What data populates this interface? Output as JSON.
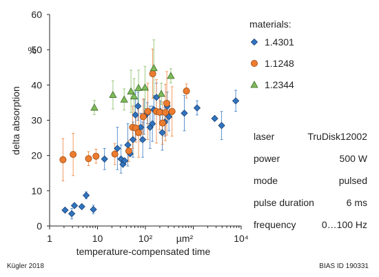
{
  "chart_data": {
    "type": "scatter",
    "x_scale": "log",
    "xlim": [
      1,
      10000
    ],
    "ylim": [
      0,
      60
    ],
    "grid": false,
    "xlabel": "temperature-compensated time",
    "ylabel": "delta absorption",
    "x_unit": "µm²",
    "y_unit": "%",
    "x_ticks": [
      {
        "value": 1,
        "label": "1"
      },
      {
        "value": 10,
        "label": "10"
      },
      {
        "value": 100,
        "label": "10²"
      },
      {
        "value": 10000,
        "label": "10⁴"
      }
    ],
    "y_ticks": [
      0,
      10,
      20,
      30,
      40,
      50,
      60
    ],
    "legend_title": "materials:",
    "legend_position": "right",
    "series": [
      {
        "name": "1.4301",
        "marker": "diamond",
        "color": "#2f74c0",
        "points": [
          {
            "x": 2.1,
            "y": 4.5
          },
          {
            "x": 2.9,
            "y": 3.5,
            "e": 1.5
          },
          {
            "x": 3.3,
            "y": 5.8
          },
          {
            "x": 4.7,
            "y": 5.5
          },
          {
            "x": 5.8,
            "y": 8.7,
            "e": 1.0
          },
          {
            "x": 8.2,
            "y": 4.7,
            "e": 1.2
          },
          {
            "x": 14,
            "y": 19,
            "e": 3
          },
          {
            "x": 26,
            "y": 22,
            "e": 6
          },
          {
            "x": 31,
            "y": 19,
            "e": 4
          },
          {
            "x": 34,
            "y": 17.5
          },
          {
            "x": 37,
            "y": 18.5
          },
          {
            "x": 43,
            "y": 23,
            "e": 6
          },
          {
            "x": 48,
            "y": 20.5
          },
          {
            "x": 55,
            "y": 24.5,
            "e": 5
          },
          {
            "x": 62,
            "y": 31.5,
            "e": 7
          },
          {
            "x": 70,
            "y": 34,
            "e": 4
          },
          {
            "x": 80,
            "y": 28,
            "e": 4
          },
          {
            "x": 88,
            "y": 24.5,
            "e": 5
          },
          {
            "x": 94,
            "y": 31,
            "e": 5
          },
          {
            "x": 110,
            "y": 32,
            "e": 3
          },
          {
            "x": 125,
            "y": 28,
            "e": 6
          },
          {
            "x": 140,
            "y": 29,
            "e": 5
          },
          {
            "x": 150,
            "y": 33,
            "e": 4
          },
          {
            "x": 170,
            "y": 36.5,
            "e": 4
          },
          {
            "x": 205,
            "y": 32.5,
            "e": 3
          },
          {
            "x": 225,
            "y": 26.5,
            "e": 5
          },
          {
            "x": 255,
            "y": 29.5,
            "e": 4
          },
          {
            "x": 285,
            "y": 34,
            "e": 4
          },
          {
            "x": 310,
            "y": 31,
            "e": 4
          },
          {
            "x": 650,
            "y": 32,
            "e": 5
          },
          {
            "x": 1200,
            "y": 33.5,
            "e": 2
          },
          {
            "x": 2800,
            "y": 30.5
          },
          {
            "x": 3900,
            "y": 28.5,
            "e": 4
          },
          {
            "x": 7700,
            "y": 35.5,
            "e": 3
          }
        ]
      },
      {
        "name": "1.1248",
        "marker": "circle",
        "color": "#ec7c30",
        "points": [
          {
            "x": 1.9,
            "y": 18.8,
            "e": 6
          },
          {
            "x": 3.1,
            "y": 20.3,
            "e": 6
          },
          {
            "x": 6.5,
            "y": 19.1,
            "e": 2
          },
          {
            "x": 9.3,
            "y": 19.8,
            "e": 2
          },
          {
            "x": 23,
            "y": 20.4,
            "e": 3
          },
          {
            "x": 45,
            "y": 21.3,
            "e": 3
          },
          {
            "x": 54,
            "y": 28,
            "e": 6
          },
          {
            "x": 63,
            "y": 27.8,
            "e": 4
          },
          {
            "x": 72,
            "y": 26.5,
            "e": 7
          },
          {
            "x": 90,
            "y": 31,
            "e": 5
          },
          {
            "x": 112,
            "y": 32.5,
            "e": 8
          },
          {
            "x": 142,
            "y": 43.2,
            "e": 7
          },
          {
            "x": 170,
            "y": 32.5,
            "e": 9
          },
          {
            "x": 198,
            "y": 32.3,
            "e": 5
          },
          {
            "x": 228,
            "y": 29.2,
            "e": 6
          },
          {
            "x": 262,
            "y": 32.2,
            "e": 8
          },
          {
            "x": 280,
            "y": 34.8,
            "e": 9
          },
          {
            "x": 360,
            "y": 32.5,
            "e": 7
          },
          {
            "x": 720,
            "y": 38.3,
            "e": 2
          }
        ]
      },
      {
        "name": "1.2344",
        "marker": "triangle",
        "color": "#7fba5a",
        "points": [
          {
            "x": 8.6,
            "y": 33.6,
            "e": 2
          },
          {
            "x": 21,
            "y": 37.2,
            "e": 4
          },
          {
            "x": 36,
            "y": 35.9,
            "e": 3
          },
          {
            "x": 50,
            "y": 38.2,
            "e": 6
          },
          {
            "x": 58,
            "y": 36.8,
            "e": 5
          },
          {
            "x": 72,
            "y": 39.2,
            "e": 5
          },
          {
            "x": 98,
            "y": 39.3,
            "e": 6
          },
          {
            "x": 150,
            "y": 44.8,
            "e": 8
          },
          {
            "x": 215,
            "y": 37.5,
            "e": 3
          },
          {
            "x": 340,
            "y": 42.6,
            "e": 2
          }
        ]
      }
    ]
  },
  "parameters": [
    {
      "label": "laser",
      "value": "TruDisk12002"
    },
    {
      "label": "power",
      "value": "500 W"
    },
    {
      "label": "mode",
      "value": "pulsed"
    },
    {
      "label": "pulse duration",
      "value": "6 ms"
    },
    {
      "label": "frequency",
      "value": "0…100 Hz"
    }
  ],
  "footer": {
    "left": "Kügler 2018",
    "right": "BIAS ID 190331"
  }
}
